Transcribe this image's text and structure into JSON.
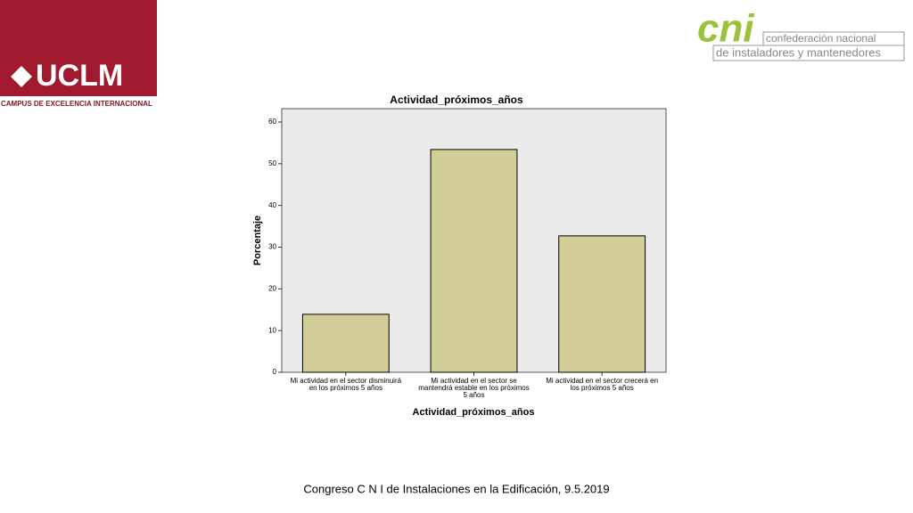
{
  "logo_left": {
    "name": "UCLM",
    "subtitle": "CAMPUS DE EXCELENCIA INTERNACIONAL"
  },
  "logo_right": {
    "name": "cni",
    "line1": "confederación nacional",
    "line2": "de instaladores y mantenedores"
  },
  "chart_data": {
    "type": "bar",
    "title": "Actividad_próximos_años",
    "x_label": "Actividad_próximos_años",
    "y_label": "Porcentaje",
    "categories": [
      "Mi actividad en el sector disminuirá en los próximos 5 años",
      "Mi actividad en el sector se mantendrá estable en los próximos 5 años",
      "Mi actividad en el sector crecerá en los próximos 5 años"
    ],
    "values": [
      13.9,
      53.4,
      32.7
    ],
    "color": "#d3ce97",
    "ylim": [
      0,
      60
    ],
    "yticks": [
      0,
      10,
      20,
      30,
      40,
      50,
      60
    ],
    "grid": false
  },
  "footer": "Congreso C N I de Instalaciones en la Edificación, 9.5.2019"
}
